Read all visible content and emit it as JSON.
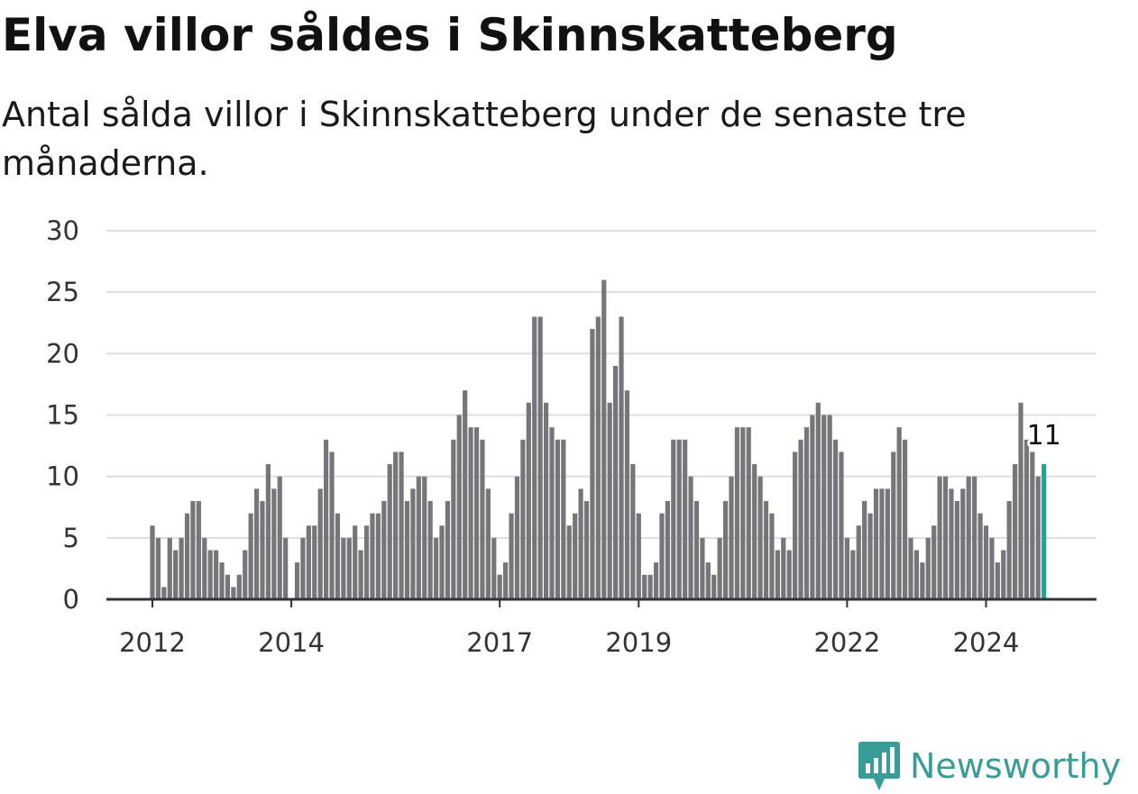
{
  "title": "Elva villor såldes i Skinnskatteberg",
  "subtitle": "Antal sålda villor i Skinnskatteberg under de senaste tre månaderna.",
  "brand": {
    "name": "Newsworthy",
    "icon": "newsworthy-logo-icon",
    "color": "#3a9c97"
  },
  "colors": {
    "bar": "#76757a",
    "highlight": "#1aa49c",
    "grid": "#dddddd",
    "axis": "#333333"
  },
  "chart_data": {
    "type": "bar",
    "title": "Elva villor såldes i Skinnskatteberg",
    "subtitle": "Antal sålda villor i Skinnskatteberg under de senaste tre månaderna.",
    "xlabel": "",
    "ylabel": "",
    "ylim": [
      0,
      30
    ],
    "yticks": [
      0,
      5,
      10,
      15,
      20,
      25,
      30
    ],
    "grid": true,
    "start_date": "2012-01",
    "frequency": "monthly",
    "xticks": [
      "2012",
      "2014",
      "2017",
      "2019",
      "2022",
      "2024"
    ],
    "values": [
      6,
      5,
      1,
      5,
      4,
      5,
      7,
      8,
      8,
      5,
      4,
      4,
      3,
      2,
      1,
      2,
      4,
      7,
      9,
      8,
      11,
      9,
      10,
      5,
      0,
      3,
      5,
      6,
      6,
      9,
      13,
      12,
      7,
      5,
      5,
      6,
      4,
      6,
      7,
      7,
      8,
      11,
      12,
      12,
      8,
      9,
      10,
      10,
      8,
      5,
      6,
      8,
      13,
      15,
      17,
      14,
      14,
      13,
      9,
      5,
      2,
      3,
      7,
      10,
      13,
      16,
      23,
      23,
      16,
      14,
      13,
      13,
      6,
      7,
      9,
      8,
      22,
      23,
      26,
      16,
      19,
      23,
      17,
      11,
      7,
      2,
      2,
      3,
      7,
      8,
      13,
      13,
      13,
      10,
      8,
      5,
      3,
      2,
      5,
      8,
      10,
      14,
      14,
      14,
      11,
      10,
      8,
      7,
      4,
      5,
      4,
      12,
      13,
      14,
      15,
      16,
      15,
      15,
      13,
      12,
      5,
      4,
      6,
      8,
      7,
      9,
      9,
      9,
      12,
      14,
      13,
      5,
      4,
      3,
      5,
      6,
      10,
      10,
      9,
      8,
      9,
      10,
      10,
      7,
      6,
      5,
      3,
      4,
      8,
      11,
      16,
      13,
      12,
      10,
      11
    ],
    "highlight": {
      "date": "2024-11",
      "value": 11,
      "label": "11"
    }
  }
}
